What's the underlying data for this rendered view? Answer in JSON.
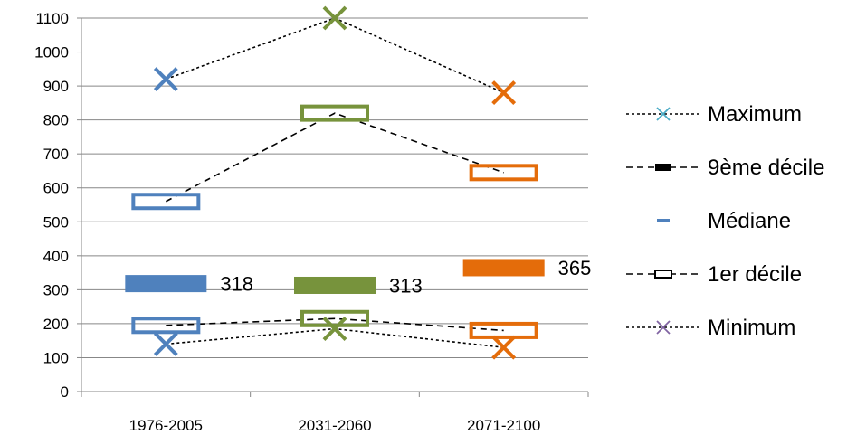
{
  "chart_data": {
    "type": "line",
    "categories": [
      "1976-2005",
      "2031-2060",
      "2071-2100"
    ],
    "ylim": [
      0,
      1100
    ],
    "yticks": [
      0,
      100,
      200,
      300,
      400,
      500,
      600,
      700,
      800,
      900,
      1000,
      1100
    ],
    "grid": true,
    "legend_position": "right",
    "category_colors": [
      "#4F81BD",
      "#77933C",
      "#E46C0A"
    ],
    "series": [
      {
        "name": "Maximum",
        "values": [
          920,
          1100,
          880
        ],
        "style": "dotted-line-x-marker"
      },
      {
        "name": "9ème décile",
        "values": [
          560,
          820,
          645
        ],
        "style": "dashed-line-hollow-box"
      },
      {
        "name": "Médiane",
        "values": [
          318,
          313,
          365
        ],
        "labels": [
          "318",
          "313",
          "365"
        ],
        "style": "filled-bar-marker"
      },
      {
        "name": "1er décile",
        "values": [
          195,
          215,
          180
        ],
        "style": "dashed-line-hollow-box"
      },
      {
        "name": "Minimum",
        "values": [
          140,
          185,
          130
        ],
        "style": "dotted-line-x-marker"
      }
    ],
    "legend": [
      {
        "label": "Maximum",
        "marker": "x",
        "line": "dotted",
        "color": "#4BACC6"
      },
      {
        "label": "9ème décile",
        "marker": "filled-box",
        "line": "dashed",
        "color": "#000000"
      },
      {
        "label": "Médiane",
        "marker": "dash",
        "line": "none",
        "color": "#4F81BD"
      },
      {
        "label": "1er décile",
        "marker": "hollow-box",
        "line": "dashed",
        "color": "#000000"
      },
      {
        "label": "Minimum",
        "marker": "x",
        "line": "dotted",
        "color": "#8064A2"
      }
    ]
  }
}
